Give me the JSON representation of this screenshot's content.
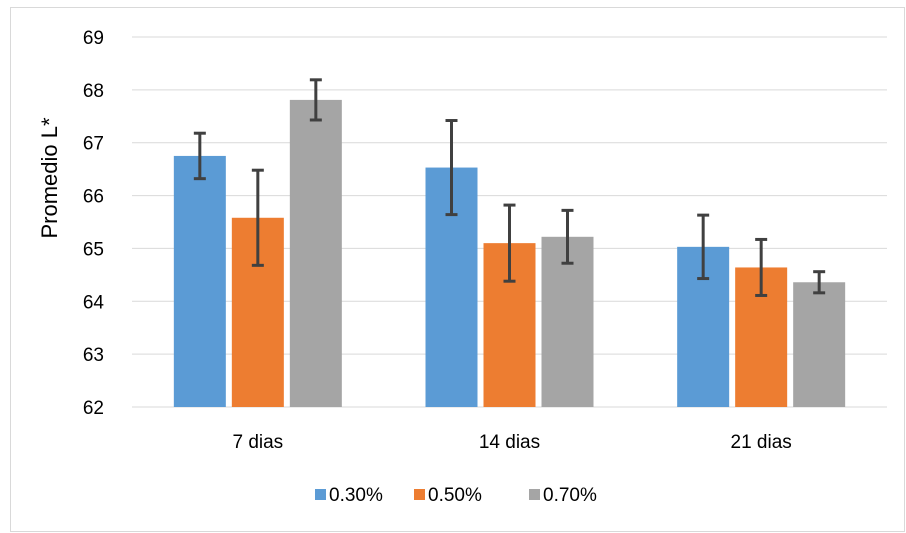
{
  "chart_data": {
    "type": "bar",
    "title": "",
    "xlabel": "",
    "ylabel": "Promedio  L*",
    "ylim": [
      62,
      69
    ],
    "yticks": [
      "62",
      "63",
      "64",
      "65",
      "66",
      "67",
      "68",
      "69"
    ],
    "grid": true,
    "legend_position": "bottom",
    "categories": [
      "7 dias",
      "14 dias",
      "21 dias"
    ],
    "series": [
      {
        "name": "0.30%",
        "color": "#5b9bd5",
        "values": [
          66.75,
          66.53,
          65.03
        ],
        "errors": [
          0.43,
          0.89,
          0.6
        ]
      },
      {
        "name": "0.50%",
        "color": "#ed7d31",
        "values": [
          65.58,
          65.1,
          64.64
        ],
        "errors": [
          0.9,
          0.72,
          0.53
        ]
      },
      {
        "name": "0.70%",
        "color": "#a5a5a5",
        "values": [
          67.81,
          65.22,
          64.36
        ],
        "errors": [
          0.38,
          0.5,
          0.2
        ]
      }
    ],
    "error_bar_color": "#404040"
  }
}
